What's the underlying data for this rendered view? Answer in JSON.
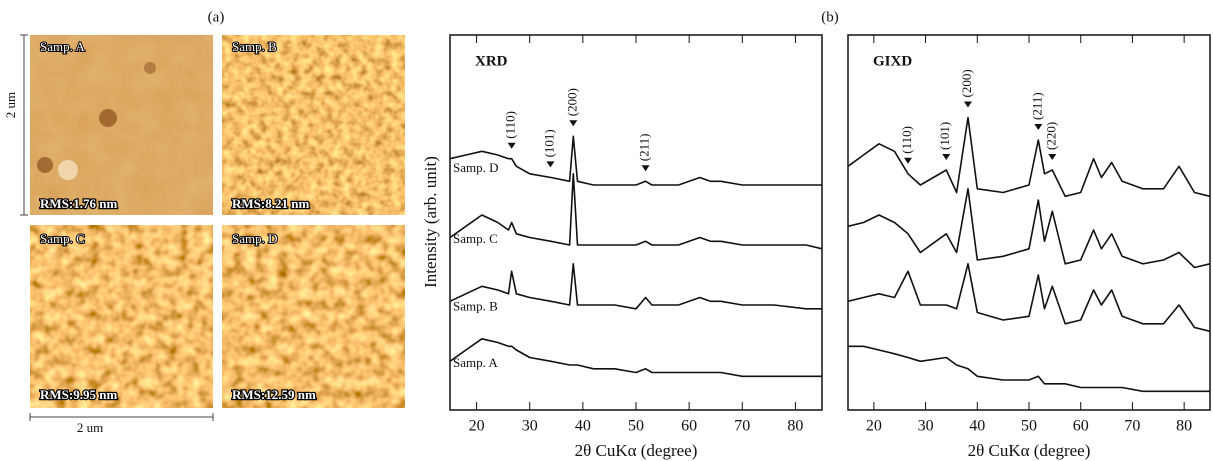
{
  "figure_labels": [
    "(a)",
    "(b)"
  ],
  "afm": {
    "scale_vertical": "2 um",
    "scale_horizontal": "2 um",
    "images": [
      {
        "sample": "Samp. A",
        "rms": "RMS:1.76 nm"
      },
      {
        "sample": "Samp. B",
        "rms": "RMS:8.21 nm"
      },
      {
        "sample": "Samp. C",
        "rms": "RMS:9.95 nm"
      },
      {
        "sample": "Samp. D",
        "rms": "RMS:12.59 nm"
      }
    ]
  },
  "chart_data": [
    {
      "type": "line",
      "title": "XRD",
      "x_label": "2θ CuKα (degree)",
      "y_label": "Intensity (arb. unit)",
      "xlim": [
        15,
        85
      ],
      "xticks": [
        20,
        30,
        40,
        50,
        60,
        70,
        80
      ],
      "ylim": [
        0,
        100
      ],
      "x": [
        15,
        18,
        21,
        24,
        26,
        26.6,
        27.5,
        30,
        34,
        37.5,
        38.2,
        39,
        42,
        46,
        50,
        51.8,
        53,
        58,
        62,
        64,
        66,
        70,
        76,
        82,
        85
      ],
      "peaks": [
        {
          "label": "(110)",
          "x": 26.6
        },
        {
          "label": "(101)",
          "x": 33.9
        },
        {
          "label": "(200)",
          "x": 38.2
        },
        {
          "label": "(211)",
          "x": 51.8
        }
      ],
      "series": [
        {
          "name": "Samp. A",
          "color": "#111111",
          "values": [
            13,
            16,
            19,
            18,
            17,
            17,
            16,
            14,
            13,
            12,
            12,
            12,
            11,
            11,
            10,
            11,
            10,
            10,
            10,
            10,
            10,
            9,
            9,
            9,
            9
          ]
        },
        {
          "name": "Samp. B",
          "color": "#111111",
          "values": [
            29,
            31,
            33,
            32,
            31,
            37,
            31,
            30,
            29,
            28,
            39,
            28,
            28,
            28,
            27,
            30,
            28,
            28,
            30,
            29,
            29,
            28,
            28,
            27,
            27
          ]
        },
        {
          "name": "Samp. C",
          "color": "#111111",
          "values": [
            46,
            49,
            52,
            50,
            48,
            50,
            47,
            46,
            45,
            44,
            63,
            44,
            44,
            44,
            44,
            45,
            44,
            44,
            46,
            45,
            45,
            44,
            44,
            44,
            43
          ]
        },
        {
          "name": "Samp. D",
          "color": "#111111",
          "values": [
            67,
            68,
            69,
            68,
            67,
            67,
            65,
            63,
            62,
            61,
            73,
            61,
            60,
            60,
            60,
            61,
            60,
            60,
            62,
            61,
            61,
            60,
            60,
            60,
            60
          ]
        }
      ]
    },
    {
      "type": "line",
      "title": "GIXD",
      "x_label": "2θ CuKα (degree)",
      "xlim": [
        15,
        85
      ],
      "xticks": [
        20,
        30,
        40,
        50,
        60,
        70,
        80
      ],
      "ylim": [
        0,
        100
      ],
      "x": [
        15,
        18,
        21,
        24,
        26.6,
        29,
        34,
        36,
        38.2,
        40,
        45,
        50,
        51.8,
        53,
        54.5,
        57,
        60,
        62.5,
        64,
        66,
        68,
        72,
        76,
        79,
        82,
        85
      ],
      "peaks": [
        {
          "label": "(110)",
          "x": 26.6
        },
        {
          "label": "(101)",
          "x": 34
        },
        {
          "label": "(200)",
          "x": 38.2
        },
        {
          "label": "(211)",
          "x": 51.8
        },
        {
          "label": "(220)",
          "x": 54.5
        }
      ],
      "series": [
        {
          "color": "#111111",
          "values": [
            17,
            17,
            16,
            15,
            14,
            13,
            14,
            12,
            11,
            9,
            8,
            8,
            9,
            7,
            7,
            7,
            6,
            6,
            6,
            6,
            6,
            5,
            5,
            5,
            5,
            5
          ]
        },
        {
          "color": "#111111",
          "values": [
            29,
            30,
            31,
            30,
            37,
            28,
            28,
            27,
            39,
            26,
            24,
            25,
            36,
            27,
            33,
            23,
            24,
            32,
            28,
            32,
            25,
            23,
            23,
            28,
            22,
            21
          ]
        },
        {
          "color": "#111111",
          "values": [
            49,
            50,
            52,
            50,
            47,
            42,
            47,
            42,
            59,
            40,
            41,
            43,
            56,
            45,
            53,
            39,
            40,
            48,
            43,
            47,
            41,
            39,
            40,
            42,
            38,
            39
          ]
        },
        {
          "color": "#111111",
          "values": [
            65,
            68,
            71,
            69,
            63,
            60,
            64,
            58,
            78,
            59,
            58,
            60,
            72,
            63,
            64,
            57,
            58,
            67,
            62,
            66,
            61,
            59,
            59,
            65,
            58,
            57
          ]
        }
      ]
    }
  ]
}
